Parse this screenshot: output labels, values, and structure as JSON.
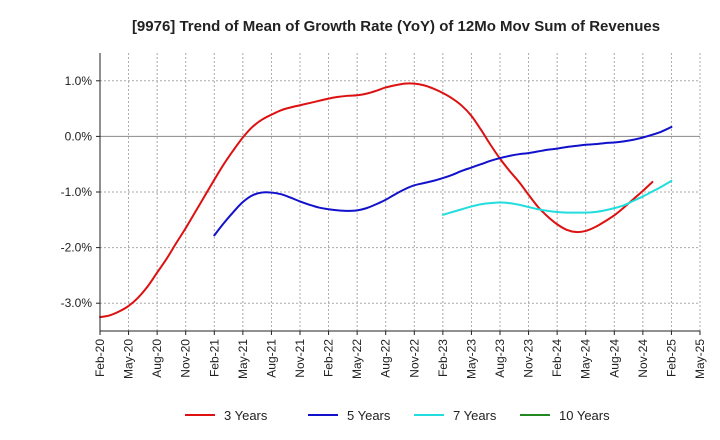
{
  "chart_data": {
    "type": "line",
    "title": "[9976]  Trend of Mean of Growth Rate (YoY) of 12Mo Mov Sum of Revenues",
    "xlabel": "",
    "ylabel": "",
    "ylim": [
      -3.5,
      1.5
    ],
    "y_ticks": [
      1.0,
      0.0,
      -1.0,
      -2.0,
      -3.0
    ],
    "y_tick_labels": [
      "1.0%",
      "0.0%",
      "-1.0%",
      "-2.0%",
      "-3.0%"
    ],
    "x_tick_labels": [
      "Feb-20",
      "May-20",
      "Aug-20",
      "Nov-20",
      "Feb-21",
      "May-21",
      "Aug-21",
      "Nov-21",
      "Feb-22",
      "May-22",
      "Aug-22",
      "Nov-22",
      "Feb-23",
      "May-23",
      "Aug-23",
      "Nov-23",
      "Feb-24",
      "May-24",
      "Aug-24",
      "Nov-24",
      "Feb-25",
      "May-25"
    ],
    "x_range_months": [
      0,
      63
    ],
    "grid": true,
    "legend_position": "bottom",
    "series": [
      {
        "name": "3 Years",
        "color": "#dd1111",
        "x": [
          0,
          1,
          2,
          3,
          4,
          5,
          6,
          7,
          8,
          9,
          10,
          11,
          12,
          13,
          14,
          15,
          16,
          17,
          18,
          19,
          20,
          21,
          22,
          23,
          24,
          25,
          26,
          27,
          28,
          29,
          30,
          31,
          32,
          33,
          34,
          35,
          36,
          37,
          38,
          39,
          40,
          41,
          42,
          43,
          44,
          45,
          46,
          47,
          48,
          49,
          50,
          51,
          52,
          53,
          54,
          55,
          56,
          57,
          58,
          59,
          60
        ],
        "values": [
          -3.25,
          -3.22,
          -3.15,
          -3.05,
          -2.9,
          -2.7,
          -2.45,
          -2.2,
          -1.92,
          -1.65,
          -1.36,
          -1.07,
          -0.78,
          -0.5,
          -0.25,
          -0.02,
          0.17,
          0.3,
          0.39,
          0.47,
          0.52,
          0.56,
          0.6,
          0.64,
          0.68,
          0.71,
          0.73,
          0.74,
          0.77,
          0.82,
          0.88,
          0.92,
          0.95,
          0.95,
          0.92,
          0.86,
          0.78,
          0.68,
          0.55,
          0.37,
          0.12,
          -0.15,
          -0.4,
          -0.62,
          -0.82,
          -1.05,
          -1.27,
          -1.44,
          -1.58,
          -1.68,
          -1.72,
          -1.7,
          -1.63,
          -1.53,
          -1.42,
          -1.28,
          -1.13,
          -0.98,
          -0.82,
          null,
          null
        ]
      },
      {
        "name": "5 Years",
        "color": "#1111cc",
        "x": [
          12,
          13,
          14,
          15,
          16,
          17,
          18,
          19,
          20,
          21,
          22,
          23,
          24,
          25,
          26,
          27,
          28,
          29,
          30,
          31,
          32,
          33,
          34,
          35,
          36,
          37,
          38,
          39,
          40,
          41,
          42,
          43,
          44,
          45,
          46,
          47,
          48,
          49,
          50,
          51,
          52,
          53,
          54,
          55,
          56,
          57,
          58,
          59,
          60
        ],
        "values": [
          -1.78,
          -1.56,
          -1.36,
          -1.18,
          -1.06,
          -1.01,
          -1.01,
          -1.04,
          -1.1,
          -1.17,
          -1.23,
          -1.28,
          -1.31,
          -1.33,
          -1.34,
          -1.33,
          -1.29,
          -1.22,
          -1.14,
          -1.04,
          -0.95,
          -0.88,
          -0.84,
          -0.8,
          -0.75,
          -0.69,
          -0.62,
          -0.56,
          -0.5,
          -0.44,
          -0.39,
          -0.35,
          -0.32,
          -0.3,
          -0.27,
          -0.24,
          -0.22,
          -0.19,
          -0.17,
          -0.15,
          -0.14,
          -0.12,
          -0.11,
          -0.09,
          -0.06,
          -0.02,
          0.03,
          0.09,
          0.17
        ]
      },
      {
        "name": "7 Years",
        "color": "#22dddd",
        "x": [
          36,
          37,
          38,
          39,
          40,
          41,
          42,
          43,
          44,
          45,
          46,
          47,
          48,
          49,
          50,
          51,
          52,
          53,
          54,
          55,
          56,
          57,
          58,
          59,
          60
        ],
        "values": [
          -1.41,
          -1.36,
          -1.31,
          -1.26,
          -1.22,
          -1.2,
          -1.19,
          -1.2,
          -1.23,
          -1.27,
          -1.31,
          -1.34,
          -1.36,
          -1.37,
          -1.37,
          -1.37,
          -1.36,
          -1.33,
          -1.29,
          -1.24,
          -1.16,
          -1.08,
          -0.99,
          -0.9,
          -0.8
        ]
      },
      {
        "name": "10 Years",
        "color": "#228822",
        "x": [],
        "values": []
      }
    ]
  }
}
